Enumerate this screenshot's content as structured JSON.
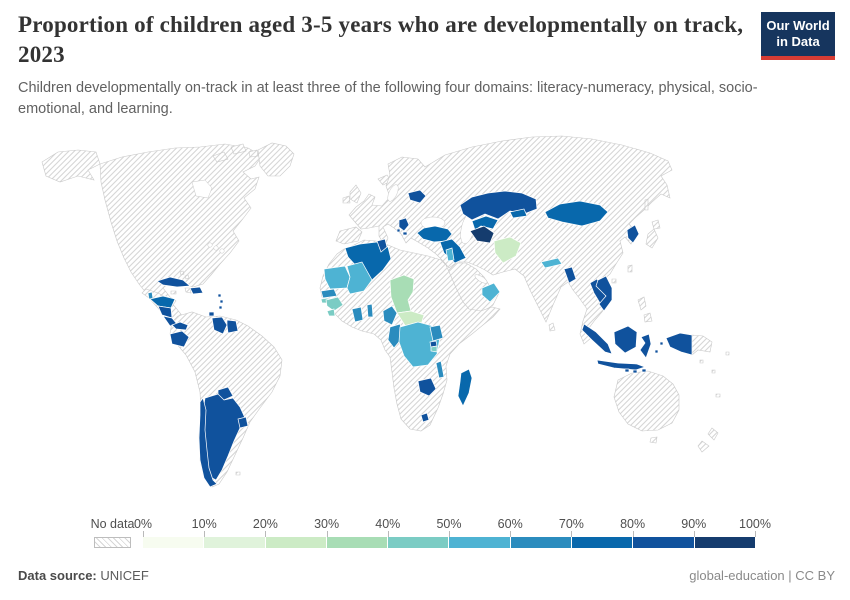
{
  "header": {
    "title": "Proportion of children aged 3-5 years who are developmentally on track, 2023",
    "subtitle": "Children developmentally on-track in at least three of the following four domains: literacy-numeracy, physical, socio-emotional, and learning."
  },
  "logo": {
    "line1": "Our World",
    "line2": "in Data",
    "bg_color": "#16355e",
    "accent_color": "#d73c34"
  },
  "legend": {
    "no_data_label": "No data",
    "tick_labels": [
      "0%",
      "10%",
      "20%",
      "30%",
      "40%",
      "50%",
      "60%",
      "70%",
      "80%",
      "90%",
      "100%"
    ],
    "colors": [
      "#f7fcf0",
      "#e0f3db",
      "#ccebc5",
      "#a8ddb5",
      "#7bccc4",
      "#4eb3d3",
      "#2b8cbe",
      "#0868ac",
      "#10529d",
      "#153c6e"
    ],
    "hatch_line_color": "#d6d6d6",
    "border_color": "#c9c9c9"
  },
  "footer": {
    "source_label": "Data source:",
    "source_value": "UNICEF",
    "credit": "global-education | CC BY"
  },
  "chart_data": {
    "type": "choropleth_map",
    "title": "Proportion of children aged 3-5 years who are developmentally on track",
    "year": 2023,
    "unit": "% of children aged 3-5 developmentally on track",
    "no_data_style": "hatched",
    "bin_ranges": [
      "0-10%",
      "10-20%",
      "20-30%",
      "30-40%",
      "40-50%",
      "50-60%",
      "60-70%",
      "70-80%",
      "80-90%",
      "90-100%"
    ],
    "countries": [
      {
        "name": "Belize",
        "bin": 7
      },
      {
        "name": "Honduras",
        "bin": 8
      },
      {
        "name": "Nicaragua",
        "bin": 9
      },
      {
        "name": "Costa Rica",
        "bin": 9
      },
      {
        "name": "Panama",
        "bin": 9
      },
      {
        "name": "Cuba",
        "bin": 9
      },
      {
        "name": "Dominican Republic",
        "bin": 9
      },
      {
        "name": "Caribbean small islands",
        "bin": 9
      },
      {
        "name": "Trinidad and Tobago",
        "bin": 9
      },
      {
        "name": "Ecuador",
        "bin": 9
      },
      {
        "name": "Guyana",
        "bin": 9
      },
      {
        "name": "Suriname",
        "bin": 9
      },
      {
        "name": "Paraguay",
        "bin": 9
      },
      {
        "name": "Uruguay",
        "bin": 9
      },
      {
        "name": "Argentina",
        "bin": 9
      },
      {
        "name": "Chile",
        "bin": 9
      },
      {
        "name": "Algeria",
        "bin": 8
      },
      {
        "name": "Tunisia",
        "bin": 9
      },
      {
        "name": "Mauritania",
        "bin": 6
      },
      {
        "name": "Mali",
        "bin": 6
      },
      {
        "name": "Senegal",
        "bin": 7
      },
      {
        "name": "Guinea-Bissau",
        "bin": 5
      },
      {
        "name": "Guinea",
        "bin": 5
      },
      {
        "name": "Sierra Leone",
        "bin": 5
      },
      {
        "name": "Ghana",
        "bin": 7
      },
      {
        "name": "Benin",
        "bin": 7
      },
      {
        "name": "Chad",
        "bin": 4
      },
      {
        "name": "Central African Republic",
        "bin": 3
      },
      {
        "name": "Cameroon",
        "bin": 7
      },
      {
        "name": "Congo",
        "bin": 7
      },
      {
        "name": "Democratic Republic of Congo",
        "bin": 6
      },
      {
        "name": "Uganda",
        "bin": 7
      },
      {
        "name": "Rwanda",
        "bin": 9
      },
      {
        "name": "Burundi",
        "bin": 5
      },
      {
        "name": "Malawi",
        "bin": 7
      },
      {
        "name": "Zimbabwe",
        "bin": 9
      },
      {
        "name": "Lesotho",
        "bin": 9
      },
      {
        "name": "Madagascar",
        "bin": 8
      },
      {
        "name": "Belarus",
        "bin": 9
      },
      {
        "name": "Serbia",
        "bin": 9
      },
      {
        "name": "Montenegro",
        "bin": 9
      },
      {
        "name": "North Macedonia",
        "bin": 9
      },
      {
        "name": "Turkey",
        "bin": 8
      },
      {
        "name": "Iraq",
        "bin": 8
      },
      {
        "name": "Jordan",
        "bin": 6
      },
      {
        "name": "Kazakhstan",
        "bin": 9
      },
      {
        "name": "Uzbekistan",
        "bin": 8
      },
      {
        "name": "Kyrgyzstan",
        "bin": 8
      },
      {
        "name": "Turkmenistan",
        "bin": 10
      },
      {
        "name": "Afghanistan",
        "bin": 3
      },
      {
        "name": "Mongolia",
        "bin": 8
      },
      {
        "name": "Nepal",
        "bin": 6
      },
      {
        "name": "Bangladesh",
        "bin": 9
      },
      {
        "name": "Oman",
        "bin": 6
      },
      {
        "name": "North Korea",
        "bin": 9
      },
      {
        "name": "Laos",
        "bin": 9
      },
      {
        "name": "Vietnam",
        "bin": 9
      },
      {
        "name": "Indonesia",
        "bin": 9
      }
    ]
  }
}
